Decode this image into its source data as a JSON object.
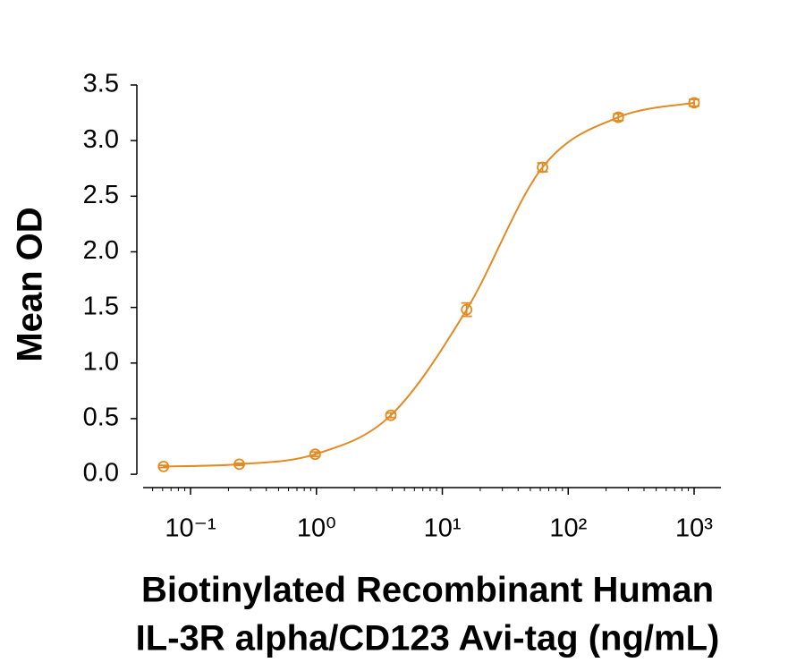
{
  "chart_data": {
    "type": "scatter",
    "x_label_lines": [
      "Biotinylated Recombinant Human",
      "IL-3R alpha/CD123 Avi-tag (ng/mL)"
    ],
    "y_label": "Mean OD",
    "x": [
      0.061,
      0.244,
      0.977,
      3.9,
      15.6,
      62.5,
      250,
      1000
    ],
    "series": [
      {
        "color": "#E38B23",
        "values": [
          0.07,
          0.09,
          0.18,
          0.53,
          1.48,
          2.76,
          3.21,
          3.34
        ],
        "errors": [
          0.01,
          0.01,
          0.02,
          0.02,
          0.06,
          0.04,
          0.03,
          0.03
        ]
      }
    ],
    "xscale": "log",
    "xlim": [
      0.042,
      1633
    ],
    "xticks": [
      {
        "value": 0.1,
        "label": "10⁻¹"
      },
      {
        "value": 1,
        "label": "10⁰"
      },
      {
        "value": 10,
        "label": "10¹"
      },
      {
        "value": 100,
        "label": "10²"
      },
      {
        "value": 1000,
        "label": "10³"
      }
    ],
    "ylim": [
      -0.12,
      3.5
    ],
    "yticks": [
      {
        "value": 0,
        "label": "0.0"
      },
      {
        "value": 0.5,
        "label": "0.5"
      },
      {
        "value": 1,
        "label": "1.0"
      },
      {
        "value": 1.5,
        "label": "1.5"
      },
      {
        "value": 2,
        "label": "2.0"
      },
      {
        "value": 2.5,
        "label": "2.5"
      },
      {
        "value": 3,
        "label": "3.0"
      },
      {
        "value": 3.5,
        "label": "3.5"
      }
    ],
    "grid": false
  }
}
